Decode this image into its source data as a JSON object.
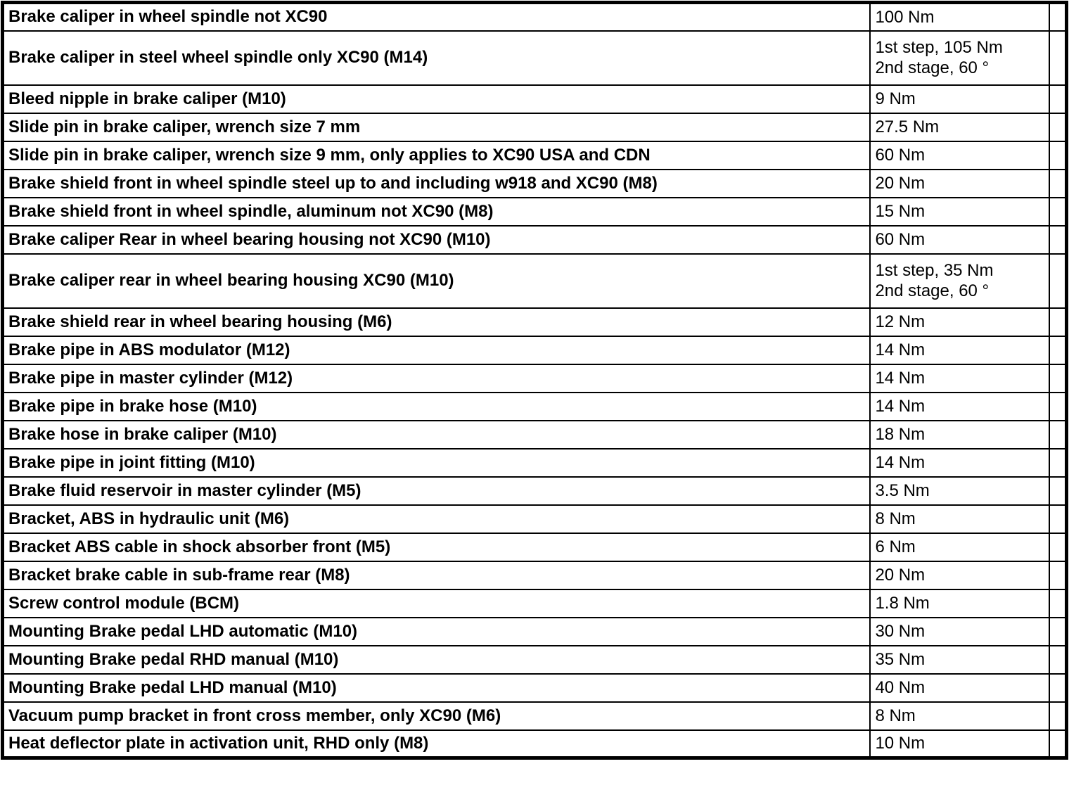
{
  "colors": {
    "border": "#000000",
    "background": "#ffffff",
    "text": "#000000"
  },
  "table": {
    "name": "brake-torque-specifications",
    "columns": [
      "description",
      "value",
      "spacer"
    ],
    "rows": [
      {
        "description": "Brake caliper in wheel spindle not XC90",
        "value": "100 Nm"
      },
      {
        "description": "Brake caliper in steel wheel spindle only XC90 (M14)",
        "value": "1st step, 105 Nm\n2nd stage, 60 °"
      },
      {
        "description": "Bleed nipple in brake caliper (M10)",
        "value": "9 Nm"
      },
      {
        "description": "Slide pin in brake caliper, wrench size 7 mm",
        "value": "27.5 Nm"
      },
      {
        "description": "Slide pin in brake caliper, wrench size 9 mm, only applies to XC90 USA and CDN",
        "value": "60 Nm"
      },
      {
        "description": "Brake shield front in wheel spindle steel up to and including w918 and XC90 (M8)",
        "value": "20 Nm"
      },
      {
        "description": "Brake shield front in wheel spindle, aluminum not XC90 (M8)",
        "value": "15 Nm"
      },
      {
        "description": "Brake caliper Rear in wheel bearing housing not XC90 (M10)",
        "value": "60 Nm"
      },
      {
        "description": "Brake caliper rear in wheel bearing housing XC90 (M10)",
        "value": "1st step, 35 Nm\n2nd stage, 60 °"
      },
      {
        "description": "Brake shield rear in wheel bearing housing (M6)",
        "value": "12 Nm"
      },
      {
        "description": "Brake pipe in ABS modulator (M12)",
        "value": "14 Nm"
      },
      {
        "description": "Brake pipe in master cylinder (M12)",
        "value": "14 Nm"
      },
      {
        "description": "Brake pipe in brake hose (M10)",
        "value": "14 Nm"
      },
      {
        "description": "Brake hose in brake caliper (M10)",
        "value": "18 Nm"
      },
      {
        "description": "Brake pipe in joint fitting (M10)",
        "value": "14 Nm"
      },
      {
        "description": "Brake fluid reservoir in master cylinder (M5)",
        "value": "3.5 Nm"
      },
      {
        "description": "Bracket, ABS in hydraulic unit (M6)",
        "value": "8 Nm"
      },
      {
        "description": "Bracket ABS cable in shock absorber front (M5)",
        "value": "6 Nm"
      },
      {
        "description": "Bracket brake cable in sub-frame rear (M8)",
        "value": "20 Nm"
      },
      {
        "description": "Screw control module (BCM)",
        "value": "1.8 Nm"
      },
      {
        "description": "Mounting Brake pedal LHD automatic (M10)",
        "value": "30 Nm"
      },
      {
        "description": "Mounting Brake pedal RHD manual (M10)",
        "value": "35 Nm"
      },
      {
        "description": "Mounting Brake pedal LHD manual (M10)",
        "value": "40 Nm"
      },
      {
        "description": "Vacuum pump bracket in front cross member, only XC90 (M6)",
        "value": "8 Nm"
      },
      {
        "description": "Heat deflector plate in activation unit, RHD only (M8)",
        "value": "10 Nm"
      }
    ]
  }
}
